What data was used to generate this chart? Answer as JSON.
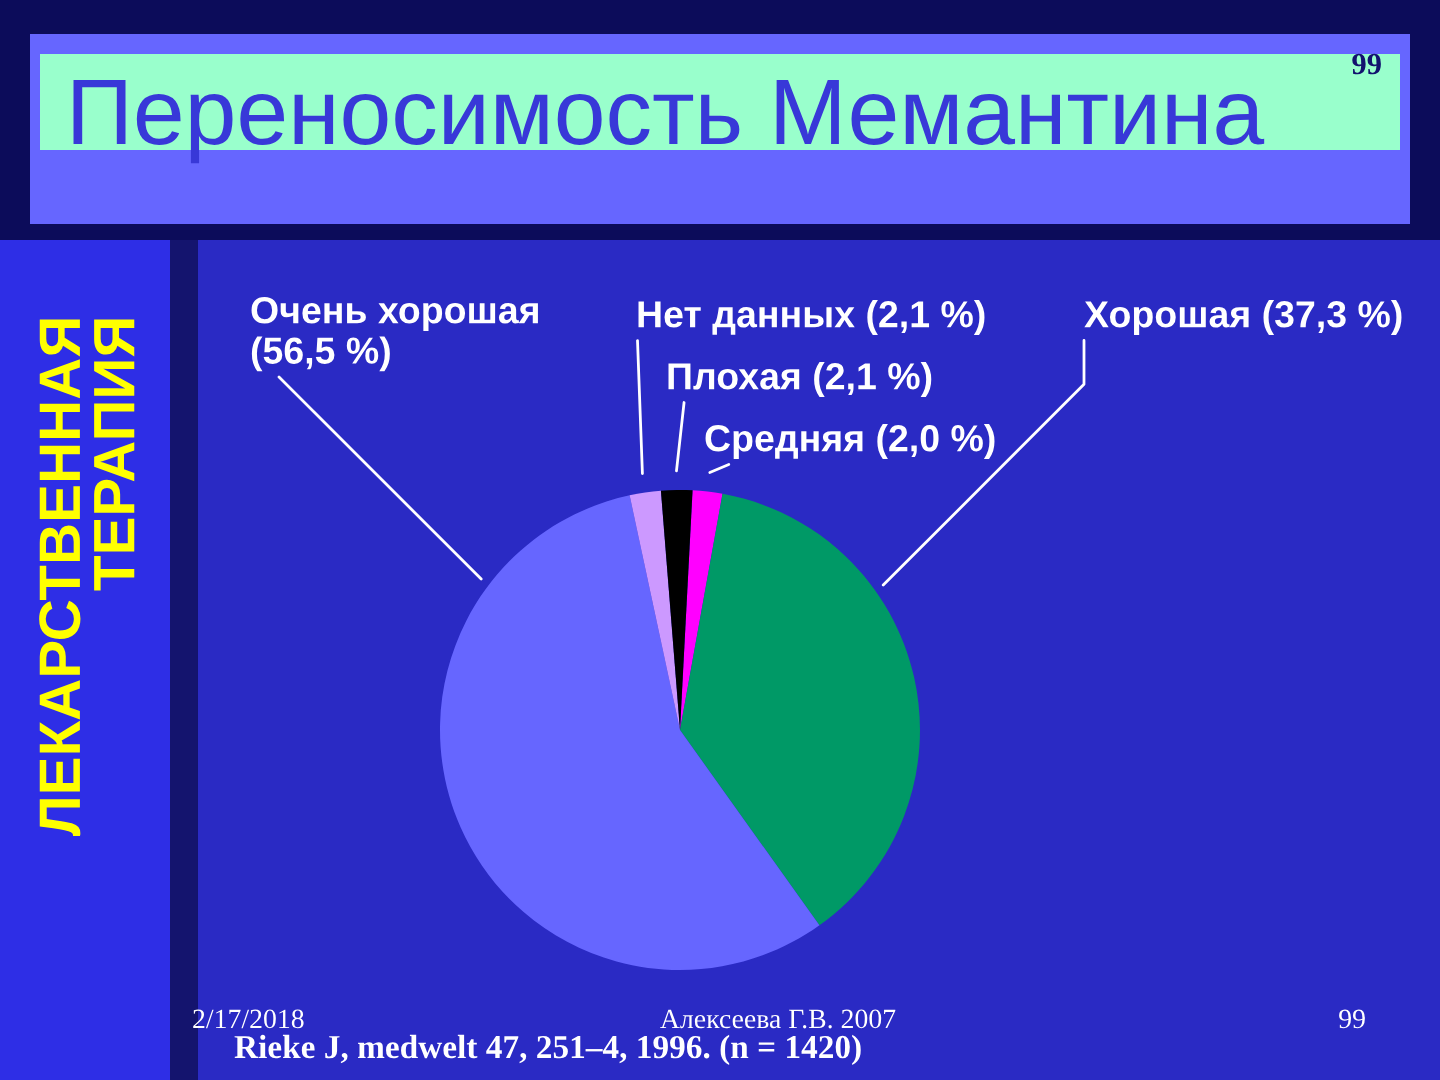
{
  "chart_data": {
    "type": "pie",
    "title": "Переносимость Мемантина",
    "categories": [
      "Средняя",
      "Хорошая",
      "Очень хорошая",
      "Нет данных",
      "Плохая"
    ],
    "values": [
      2.0,
      37.3,
      56.5,
      2.1,
      2.1
    ],
    "value_labels": [
      "(2,0 %)",
      "(37,3 %)",
      "(56,5 %)",
      "(2,1 %)",
      "(2,1 %)"
    ],
    "colors": [
      "#ff00ff",
      "#009966",
      "#6666ff",
      "#cc99ff",
      "#000000"
    ],
    "annotations": [
      "99",
      "ЛЕКАРСТВЕННАЯ\nТЕРАПИЯ",
      "2/17/2018",
      "Алексеева Г.В. 2007",
      "99",
      "Rieke J, medwelt 47, 251–4, 1996. (n = 1420)"
    ]
  }
}
